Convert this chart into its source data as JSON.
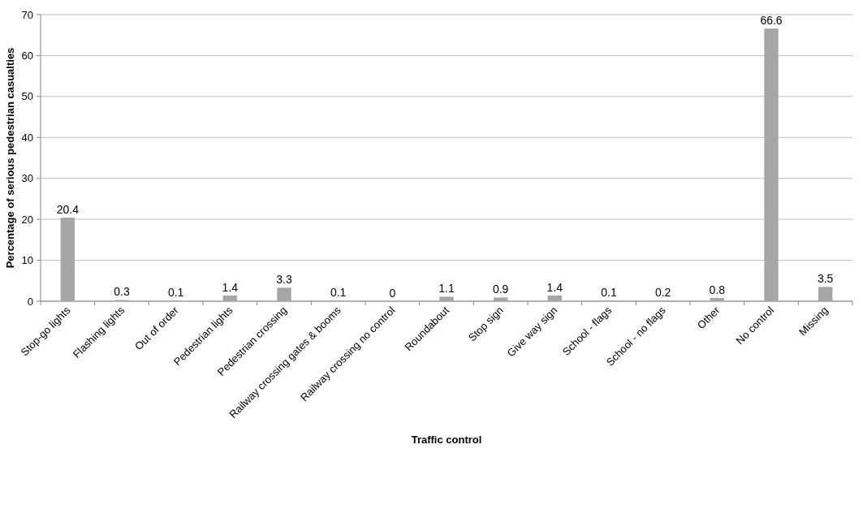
{
  "chart_data": {
    "type": "bar",
    "xlabel": "Traffic control",
    "ylabel": "Percentage of serious pedestrian casualties",
    "categories": [
      "Stop-go lights",
      "Flashing lights",
      "Out of order",
      "Pedestrian lights",
      "Pedestrian crossing",
      "Railway crossing gates & booms",
      "Railway crossing no control",
      "Roundabout",
      "Stop sign",
      "Give way sign",
      "School - flags",
      "School - no flags",
      "Other",
      "No control",
      "Missing"
    ],
    "values": [
      20.4,
      0.3,
      0.1,
      1.4,
      3.3,
      0.1,
      0,
      1.1,
      0.9,
      1.4,
      0.1,
      0.2,
      0.8,
      66.6,
      3.5
    ],
    "color": "#a6a6a6",
    "ylim": [
      0,
      70
    ],
    "yticks": [
      0,
      10,
      20,
      30,
      40,
      50,
      60,
      70
    ],
    "grid": "y",
    "data_labels": true
  }
}
